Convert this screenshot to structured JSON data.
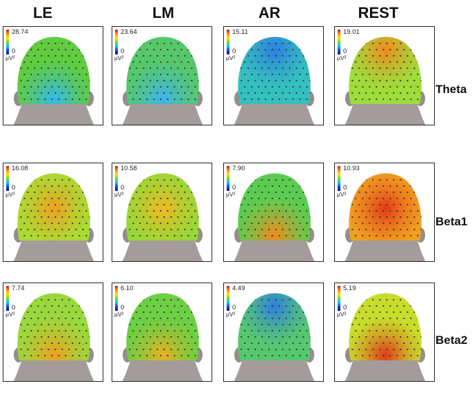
{
  "columns": [
    {
      "label": "LE"
    },
    {
      "label": "LM"
    },
    {
      "label": "AR"
    },
    {
      "label": "REST"
    }
  ],
  "rows": [
    {
      "label": "Theta",
      "maps": [
        {
          "max": "28.74",
          "min": "0",
          "unit": "µV²",
          "base": "#60cc40",
          "blobs": [
            {
              "c": "#2fb9ee",
              "region": "bottom"
            }
          ]
        },
        {
          "max": "23.64",
          "min": "0",
          "unit": "µV²",
          "base": "#56c86a",
          "blobs": [
            {
              "c": "#3cb4ee",
              "region": "bottom"
            }
          ]
        },
        {
          "max": "15.11",
          "min": "0",
          "unit": "µV²",
          "base": "#35c0c0",
          "blobs": [
            {
              "c": "#2c7fe0",
              "region": "top"
            }
          ]
        },
        {
          "max": "19.01",
          "min": "0",
          "unit": "µV²",
          "base": "#9edc3a",
          "blobs": [
            {
              "c": "#f08a1e",
              "region": "top"
            }
          ]
        }
      ]
    },
    {
      "label": "Beta1",
      "maps": [
        {
          "max": "16.08",
          "min": "0",
          "unit": "µV²",
          "base": "#a8dc34",
          "blobs": [
            {
              "c": "#f0a020",
              "region": "center"
            }
          ]
        },
        {
          "max": "10.58",
          "min": "0",
          "unit": "µV²",
          "base": "#98d838",
          "blobs": [
            {
              "c": "#f0b820",
              "region": "center"
            }
          ]
        },
        {
          "max": "7.90",
          "min": "0",
          "unit": "µV²",
          "base": "#5ccc50",
          "blobs": [
            {
              "c": "#f28a1e",
              "region": "bottom"
            }
          ]
        },
        {
          "max": "10.93",
          "min": "0",
          "unit": "µV²",
          "base": "#f0a020",
          "blobs": [
            {
              "c": "#e43a18",
              "region": "center"
            }
          ]
        }
      ]
    },
    {
      "label": "Beta2",
      "maps": [
        {
          "max": "7.74",
          "min": "0",
          "unit": "µV²",
          "base": "#9ad83c",
          "blobs": [
            {
              "c": "#f0a020",
              "region": "bottom"
            }
          ]
        },
        {
          "max": "6.10",
          "min": "0",
          "unit": "µV²",
          "base": "#6ccf44",
          "blobs": [
            {
              "c": "#e8b020",
              "region": "bottom"
            }
          ]
        },
        {
          "max": "4.49",
          "min": "0",
          "unit": "µV²",
          "base": "#56c870",
          "blobs": [
            {
              "c": "#2c7fe0",
              "region": "top"
            }
          ]
        },
        {
          "max": "5.19",
          "min": "0",
          "unit": "µV²",
          "base": "#c8dc2c",
          "blobs": [
            {
              "c": "#e23a18",
              "region": "bottom"
            }
          ]
        }
      ]
    }
  ]
}
